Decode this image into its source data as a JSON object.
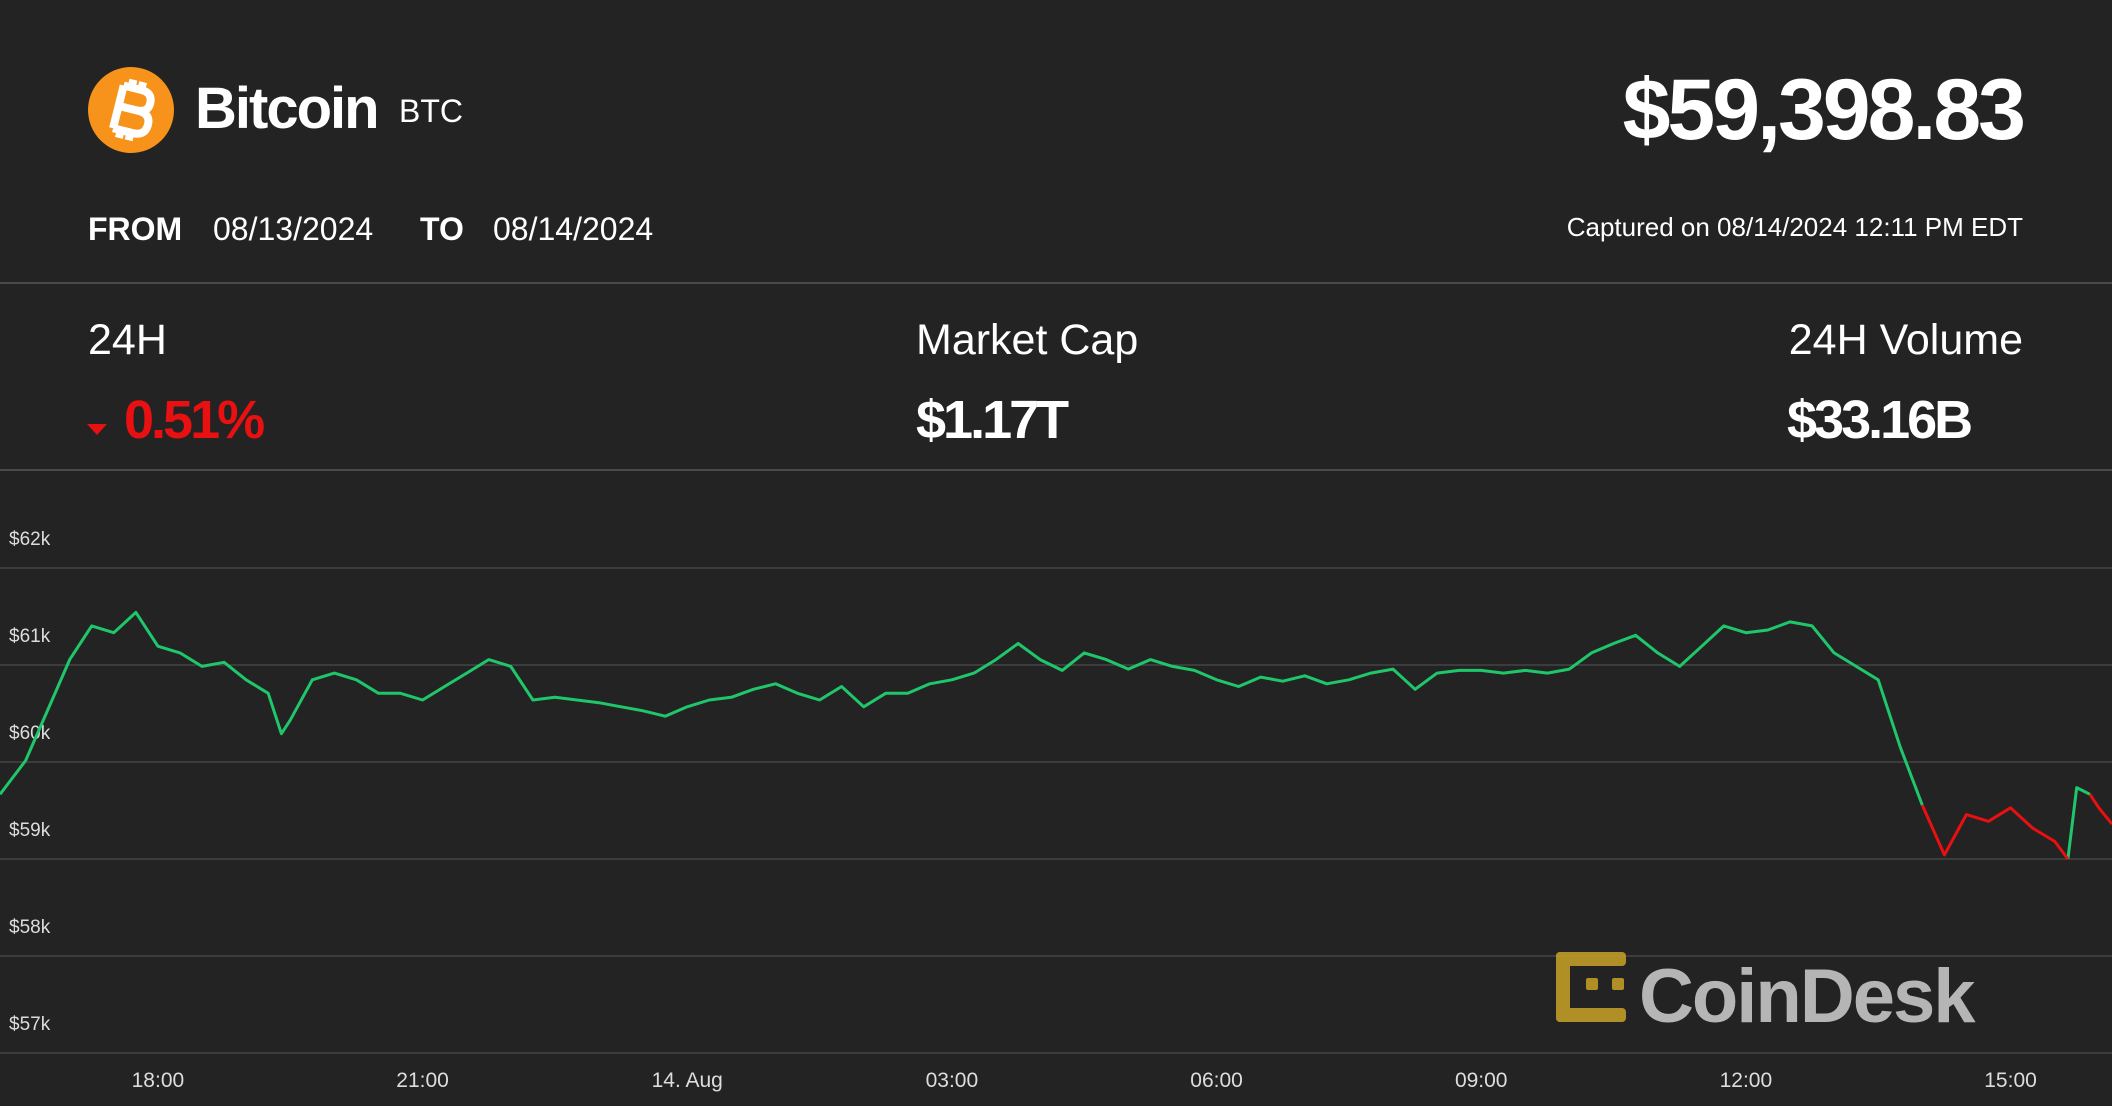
{
  "header": {
    "name": "Bitcoin",
    "symbol": "BTC",
    "price": "$59,398.83",
    "from_label": "FROM",
    "from_date": "08/13/2024",
    "to_label": "TO",
    "to_date": "08/14/2024",
    "captured": "Captured on 08/14/2024 12:11 PM EDT"
  },
  "stats": [
    {
      "label": "24H",
      "value": "0.51%"
    },
    {
      "label": "Market Cap",
      "value": "$1.17T"
    },
    {
      "label": "24H Volume",
      "value": "$33.16B"
    }
  ],
  "watermark": "CoinDesk",
  "chart_data": {
    "type": "line",
    "x": [
      16.21,
      16.5,
      16.8,
      17.0,
      17.25,
      17.5,
      17.75,
      18.0,
      18.25,
      18.5,
      18.75,
      19.0,
      19.25,
      19.4,
      19.5,
      19.75,
      20.0,
      20.25,
      20.5,
      20.75,
      21.0,
      21.25,
      21.5,
      21.75,
      22.0,
      22.25,
      22.5,
      22.75,
      23.0,
      23.25,
      23.5,
      23.75,
      24.0,
      24.25,
      24.5,
      24.75,
      25.0,
      25.25,
      25.5,
      25.75,
      26.0,
      26.25,
      26.5,
      26.75,
      27.0,
      27.25,
      27.5,
      27.75,
      28.0,
      28.25,
      28.5,
      28.75,
      29.0,
      29.25,
      29.5,
      29.75,
      30.0,
      30.25,
      30.5,
      30.75,
      31.0,
      31.25,
      31.5,
      31.75,
      32.0,
      32.25,
      32.5,
      32.75,
      33.0,
      33.25,
      33.5,
      33.75,
      34.0,
      34.25,
      34.5,
      34.75,
      35.0,
      35.25,
      35.5,
      35.75,
      36.0,
      36.25,
      36.5,
      36.75,
      37.0,
      37.25,
      37.5,
      37.75,
      38.0,
      38.25,
      38.5,
      38.75,
      39.0,
      39.25,
      39.5,
      39.65,
      39.75,
      39.9,
      40.0,
      40.15
    ],
    "series": [
      {
        "color": "#1fc76a",
        "values": [
          59667,
          60014,
          60639,
          61056,
          61403,
          61333,
          61542,
          61194,
          61125,
          60986,
          61028,
          60847,
          60708,
          60292,
          60431,
          60847,
          60917,
          60847,
          60708,
          60708,
          60639,
          60778,
          60917,
          61056,
          60986,
          60639,
          60667,
          60639,
          60611,
          60569,
          60528,
          60472,
          60569,
          60639,
          60667,
          60750,
          60806,
          60708,
          60639,
          60778,
          60569,
          60708,
          60708,
          60806,
          60847,
          60917,
          61056,
          61222,
          61056,
          60944,
          61125,
          61056,
          60958,
          61056,
          60986,
          60944,
          60847,
          60778,
          60875,
          60833,
          60889,
          60806,
          60847,
          60917,
          60958,
          60750,
          60917,
          60944,
          60944,
          60917,
          60944,
          60917,
          60958,
          61125,
          61222,
          61306,
          61125,
          60986,
          61194,
          61403,
          61333,
          61361,
          61444,
          61403,
          61125,
          60986,
          60847,
          60153,
          59556,
          null,
          null,
          null,
          null,
          null,
          null,
          59000,
          59736,
          59667,
          null,
          null
        ]
      },
      {
        "color": "#e81010",
        "values": [
          null,
          null,
          null,
          null,
          null,
          null,
          null,
          null,
          null,
          null,
          null,
          null,
          null,
          null,
          null,
          null,
          null,
          null,
          null,
          null,
          null,
          null,
          null,
          null,
          null,
          null,
          null,
          null,
          null,
          null,
          null,
          null,
          null,
          null,
          null,
          null,
          null,
          null,
          null,
          null,
          null,
          null,
          null,
          null,
          null,
          null,
          null,
          null,
          null,
          null,
          null,
          null,
          null,
          null,
          null,
          null,
          null,
          null,
          null,
          null,
          null,
          null,
          null,
          null,
          null,
          null,
          null,
          null,
          null,
          null,
          null,
          null,
          null,
          null,
          null,
          null,
          null,
          null,
          null,
          null,
          null,
          null,
          null,
          null,
          null,
          null,
          null,
          null,
          59556,
          59042,
          59458,
          59389,
          59528,
          59319,
          59181,
          59000,
          null,
          59667,
          59528,
          59361
        ]
      }
    ],
    "xlim": [
      16.21,
      40.15
    ],
    "xticks": [
      {
        "value": 18,
        "label": "18:00"
      },
      {
        "value": 21,
        "label": "21:00"
      },
      {
        "value": 24,
        "label": "14. Aug"
      },
      {
        "value": 27,
        "label": "03:00"
      },
      {
        "value": 30,
        "label": "06:00"
      },
      {
        "value": 33,
        "label": "09:00"
      },
      {
        "value": 36,
        "label": "12:00"
      },
      {
        "value": 39,
        "label": "15:00"
      }
    ],
    "ylim": [
      57000,
      63000
    ],
    "yticks": [
      {
        "value": 57000,
        "label": "$57k"
      },
      {
        "value": 58000,
        "label": "$58k"
      },
      {
        "value": 59000,
        "label": "$59k"
      },
      {
        "value": 60000,
        "label": "$60k"
      },
      {
        "value": 61000,
        "label": "$61k"
      },
      {
        "value": 62000,
        "label": "$62k"
      }
    ],
    "grid": true
  }
}
